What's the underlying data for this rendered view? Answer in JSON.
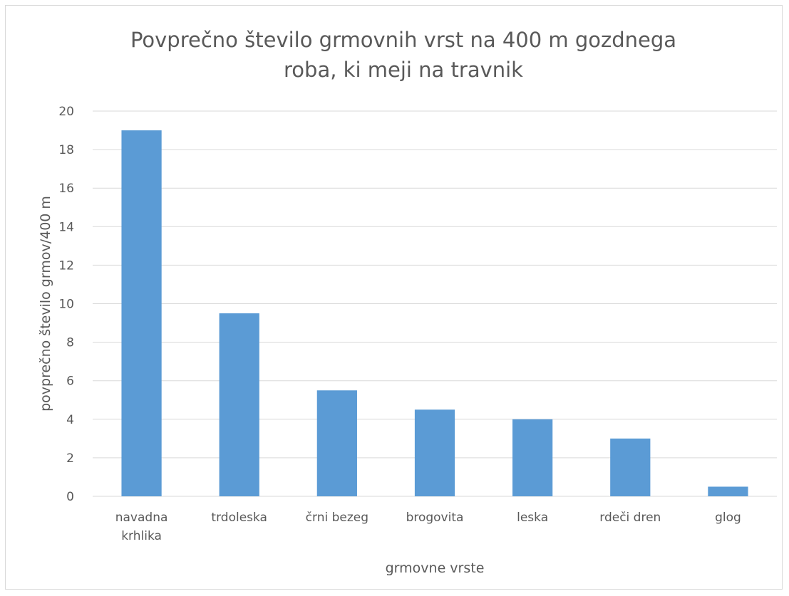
{
  "chart_data": {
    "type": "bar",
    "title": [
      "Povprečno število grmovnih vrst na 400 m gozdnega",
      "roba, ki meji na travnik"
    ],
    "xlabel": "grmovne vrste",
    "ylabel": "povprečno število grmov/400 m",
    "categories": [
      [
        "navadna",
        "krhlika"
      ],
      [
        "trdoleska"
      ],
      [
        "črni bezeg"
      ],
      [
        "brogovita"
      ],
      [
        "leska"
      ],
      [
        "rdeči dren"
      ],
      [
        "glog"
      ]
    ],
    "values": [
      19,
      9.5,
      5.5,
      4.5,
      4,
      3,
      0.5
    ],
    "ylim": [
      0,
      20
    ],
    "yticks": [
      0,
      2,
      4,
      6,
      8,
      10,
      12,
      14,
      16,
      18,
      20
    ],
    "grid": true,
    "legend": "none",
    "bar_color": "#5b9bd5"
  }
}
